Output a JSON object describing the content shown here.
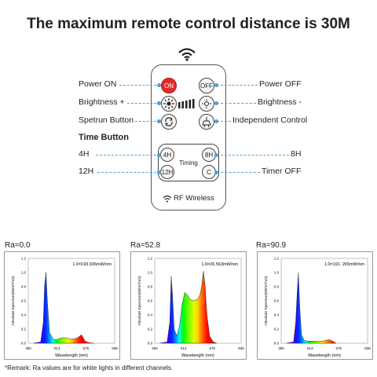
{
  "title": "The maximum remote control distance is 30M",
  "remote": {
    "wifi_icon": "wireless-icon",
    "on_label": "ON",
    "off_label": "OFF",
    "timing_label": "Timing",
    "btn_4h": "4H",
    "btn_8h": "8H",
    "btn_12h": "12H",
    "btn_c": "C",
    "footer": "RF Wireless"
  },
  "labels": {
    "power_on": "Power ON",
    "power_off": "Power OFF",
    "brightness_up": "Brightness +",
    "brightness_down": "Brightness -",
    "spectrum": "Spetrun Button",
    "independent": "Independent Control",
    "time_button": "Time Button",
    "h4": "4H",
    "h8": "8H",
    "h12": "12H",
    "timer_off": "Timer OFF"
  },
  "colors": {
    "accent": "#4a9fd8",
    "on_button": "#e02b2b"
  },
  "chart_data": [
    {
      "type": "area",
      "ra": "Ra=0.0",
      "annotation": "1.0=193.936mW/nm",
      "ylabel": "Absolute Spectrum(W/m²/nm)",
      "xlabel": "Wavelength (nm)",
      "xticks": [
        "350",
        "513",
        "675",
        "838"
      ],
      "yticks": [
        "0.0",
        "0.2",
        "0.4",
        "0.6",
        "0.8",
        "1.0",
        "1.2"
      ],
      "xlim": [
        350,
        838
      ],
      "ylim": [
        0,
        1.2
      ],
      "x": [
        380,
        420,
        435,
        442,
        450,
        458,
        470,
        490,
        510,
        530,
        550,
        570,
        590,
        610,
        630,
        640,
        650,
        660,
        670,
        690,
        720
      ],
      "y": [
        0,
        0.02,
        0.3,
        0.8,
        1.0,
        0.6,
        0.15,
        0.06,
        0.05,
        0.07,
        0.08,
        0.07,
        0.06,
        0.06,
        0.08,
        0.1,
        0.12,
        0.08,
        0.03,
        0.01,
        0
      ]
    },
    {
      "type": "area",
      "ra": "Ra=52.8",
      "annotation": "1.0=26.563mW/nm",
      "ylabel": "Absolute Spectrum(W/m²/nm)",
      "xlabel": "Wavelength (nm)",
      "xticks": [
        "350",
        "513",
        "675",
        "838"
      ],
      "yticks": [
        "0.0",
        "0.2",
        "0.4",
        "0.6",
        "0.8",
        "1.0",
        "1.2"
      ],
      "xlim": [
        350,
        838
      ],
      "ylim": [
        0,
        1.2
      ],
      "x": [
        380,
        420,
        435,
        443,
        450,
        460,
        475,
        490,
        505,
        520,
        535,
        550,
        570,
        590,
        605,
        615,
        625,
        635,
        645,
        660,
        680,
        700
      ],
      "y": [
        0,
        0.02,
        0.3,
        0.95,
        0.7,
        0.2,
        0.1,
        0.25,
        0.55,
        0.72,
        0.68,
        0.62,
        0.6,
        0.62,
        0.68,
        0.8,
        1.02,
        0.8,
        0.4,
        0.1,
        0.02,
        0
      ]
    },
    {
      "type": "area",
      "ra": "Ra=90.9",
      "annotation": "1.0=191. 265mW/nm",
      "ylabel": "Absolute Spectrum(W/m²/nm)",
      "xlabel": "Wavelength (nm)",
      "xticks": [
        "350",
        "513",
        "675",
        "838"
      ],
      "yticks": [
        "0.0",
        "0.2",
        "0.4",
        "0.6",
        "0.8",
        "1.0",
        "1.2"
      ],
      "xlim": [
        350,
        838
      ],
      "ylim": [
        0,
        1.2
      ],
      "x": [
        380,
        420,
        432,
        440,
        447,
        455,
        465,
        480,
        500,
        520,
        540,
        560,
        580,
        600,
        620,
        640,
        660
      ],
      "y": [
        0,
        0.02,
        0.3,
        0.7,
        1.0,
        0.5,
        0.12,
        0.04,
        0.03,
        0.03,
        0.03,
        0.03,
        0.03,
        0.04,
        0.05,
        0.03,
        0
      ]
    }
  ],
  "remark": "*Remark: Ra values are for white lights in different channels."
}
